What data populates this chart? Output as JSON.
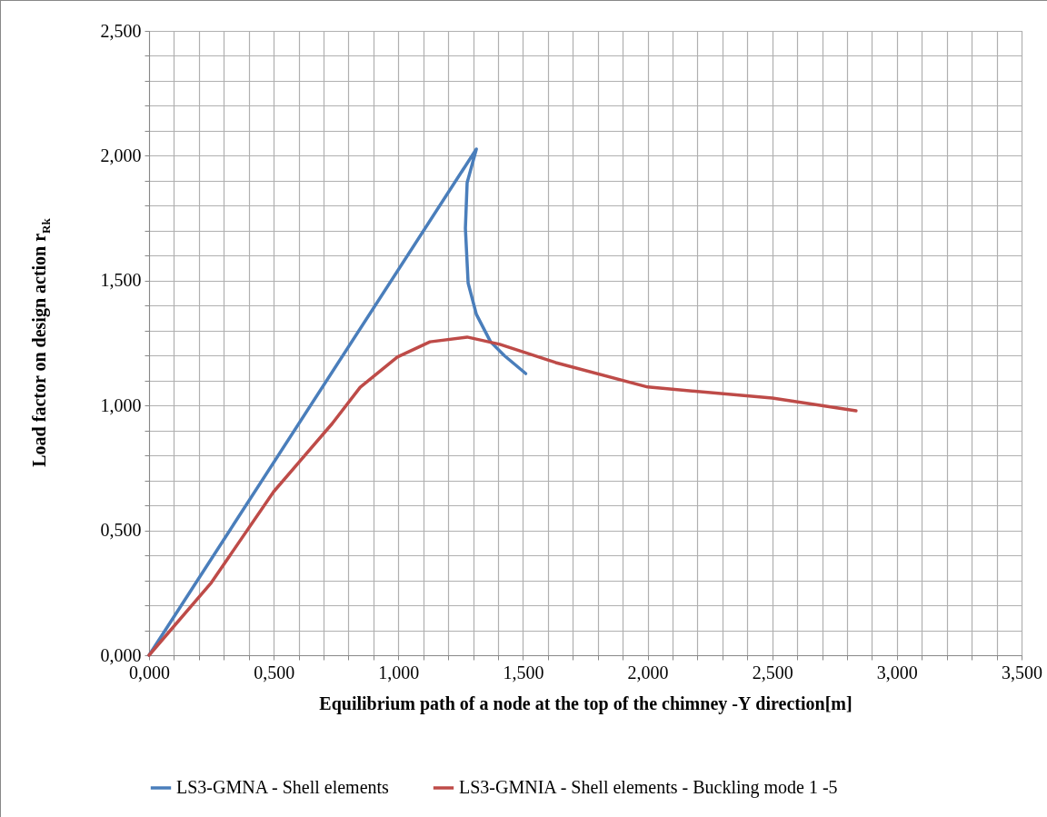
{
  "chart_data": {
    "type": "line",
    "xlabel": "Equilibrium path of a node at the top of the chimney -Υ direction[m]",
    "ylabel": "Load factor on design action r$_{Rk}$",
    "series": [
      {
        "name": "LS3-GMNA - Shell elements",
        "color": "#4a7ebb",
        "x": [
          0,
          1.313,
          1.276,
          1.269,
          1.28,
          1.313,
          1.37,
          1.425,
          1.511
        ],
        "values": [
          0,
          2.027,
          1.892,
          1.71,
          1.49,
          1.365,
          1.255,
          1.2,
          1.128
        ]
      },
      {
        "name": "LS3-GMNIA - Shell elements - Buckling mode 1 -5",
        "color": "#be4b48",
        "x": [
          0,
          0.25,
          0.5,
          0.735,
          0.847,
          0.996,
          1.127,
          1.276,
          1.407,
          1.631,
          2.0,
          2.5,
          2.836
        ],
        "values": [
          0,
          0.291,
          0.655,
          0.928,
          1.073,
          1.194,
          1.255,
          1.274,
          1.245,
          1.172,
          1.074,
          1.03,
          0.979
        ]
      }
    ],
    "xlim": [
      0,
      3.5
    ],
    "ylim": [
      0,
      2.5
    ],
    "xticks": [
      {
        "value": 0,
        "label": "0,000"
      },
      {
        "value": 0.1,
        "label": null
      },
      {
        "value": 0.2,
        "label": null
      },
      {
        "value": 0.3,
        "label": null
      },
      {
        "value": 0.4,
        "label": null
      },
      {
        "value": 0.5,
        "label": "0,500"
      },
      {
        "value": 0.6,
        "label": null
      },
      {
        "value": 0.7,
        "label": null
      },
      {
        "value": 0.8,
        "label": null
      },
      {
        "value": 0.9,
        "label": null
      },
      {
        "value": 1,
        "label": "1,000"
      },
      {
        "value": 1.1,
        "label": null
      },
      {
        "value": 1.2,
        "label": null
      },
      {
        "value": 1.3,
        "label": null
      },
      {
        "value": 1.4,
        "label": null
      },
      {
        "value": 1.5,
        "label": "1,500"
      },
      {
        "value": 1.6,
        "label": null
      },
      {
        "value": 1.7,
        "label": null
      },
      {
        "value": 1.8,
        "label": null
      },
      {
        "value": 1.9,
        "label": null
      },
      {
        "value": 2,
        "label": "2,000"
      },
      {
        "value": 2.1,
        "label": null
      },
      {
        "value": 2.2,
        "label": null
      },
      {
        "value": 2.3,
        "label": null
      },
      {
        "value": 2.4,
        "label": null
      },
      {
        "value": 2.5,
        "label": "2,500"
      },
      {
        "value": 2.6,
        "label": null
      },
      {
        "value": 2.7,
        "label": null
      },
      {
        "value": 2.8,
        "label": null
      },
      {
        "value": 2.9,
        "label": null
      },
      {
        "value": 3,
        "label": "3,000"
      },
      {
        "value": 3.1,
        "label": null
      },
      {
        "value": 3.2,
        "label": null
      },
      {
        "value": 3.3,
        "label": null
      },
      {
        "value": 3.4,
        "label": null
      },
      {
        "value": 3.5,
        "label": "3,500"
      }
    ],
    "yticks": [
      {
        "value": 0,
        "label": "0,000"
      },
      {
        "value": 0.1,
        "label": null
      },
      {
        "value": 0.2,
        "label": null
      },
      {
        "value": 0.3,
        "label": null
      },
      {
        "value": 0.4,
        "label": null
      },
      {
        "value": 0.5,
        "label": "0,500"
      },
      {
        "value": 0.6,
        "label": null
      },
      {
        "value": 0.7,
        "label": null
      },
      {
        "value": 0.8,
        "label": null
      },
      {
        "value": 0.9,
        "label": null
      },
      {
        "value": 1,
        "label": "1,000"
      },
      {
        "value": 1.1,
        "label": null
      },
      {
        "value": 1.2,
        "label": null
      },
      {
        "value": 1.3,
        "label": null
      },
      {
        "value": 1.4,
        "label": null
      },
      {
        "value": 1.5,
        "label": "1,500"
      },
      {
        "value": 1.6,
        "label": null
      },
      {
        "value": 1.7,
        "label": null
      },
      {
        "value": 1.8,
        "label": null
      },
      {
        "value": 1.9,
        "label": null
      },
      {
        "value": 2,
        "label": "2,000"
      },
      {
        "value": 2.1,
        "label": null
      },
      {
        "value": 2.2,
        "label": null
      },
      {
        "value": 2.3,
        "label": null
      },
      {
        "value": 2.4,
        "label": null
      },
      {
        "value": 2.5,
        "label": "2,500"
      }
    ],
    "grid": true,
    "legend": "bottom",
    "line_style": "solid",
    "marker": "none"
  }
}
